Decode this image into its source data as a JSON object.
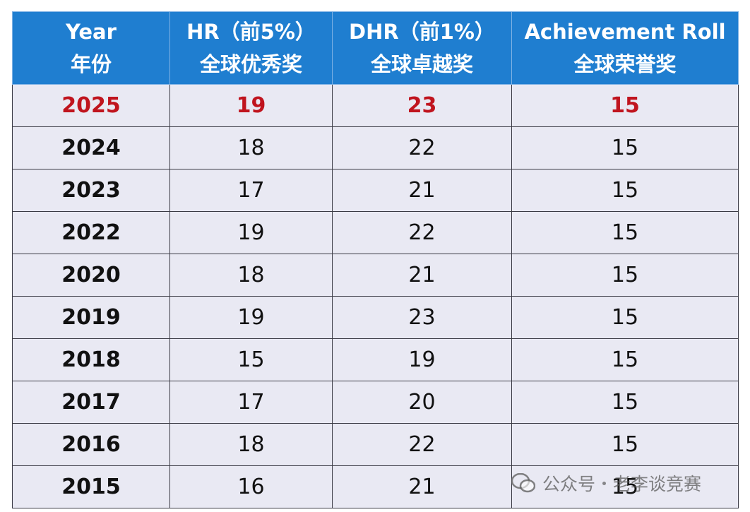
{
  "header": {
    "columns": [
      {
        "line1": "Year",
        "line2": "年份"
      },
      {
        "line1": "HR（前5%）",
        "line2": "全球优秀奖"
      },
      {
        "line1": "DHR（前1%）",
        "line2": "全球卓越奖"
      },
      {
        "line1": "Achievement Roll",
        "line2": "全球荣誉奖"
      }
    ]
  },
  "table": {
    "rows": [
      [
        2025,
        19,
        23,
        15
      ],
      [
        2024,
        18,
        22,
        15
      ],
      [
        2023,
        17,
        21,
        15
      ],
      [
        2022,
        19,
        22,
        15
      ],
      [
        2020,
        18,
        21,
        15
      ],
      [
        2019,
        19,
        23,
        15
      ],
      [
        2018,
        15,
        19,
        15
      ],
      [
        2017,
        17,
        20,
        15
      ],
      [
        2016,
        18,
        22,
        15
      ],
      [
        2015,
        16,
        21,
        15
      ]
    ]
  },
  "watermark": {
    "account": "公众号",
    "name": "老李谈竞赛"
  }
}
